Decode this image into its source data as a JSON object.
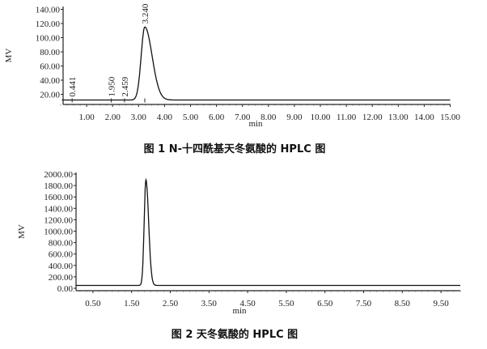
{
  "chart_data": [
    {
      "type": "line",
      "caption": "图 1   N-十四酰基天冬氨酸的 HPLC 图",
      "xlabel": "min",
      "ylabel": "MV",
      "xlim": [
        0,
        15
      ],
      "ylim": [
        7,
        145
      ],
      "xticks": [
        "1.00",
        "2.00",
        "3.00",
        "4.00",
        "5.00",
        "6.00",
        "7.00",
        "8.00",
        "9.00",
        "10.00",
        "11.00",
        "12.00",
        "13.00",
        "14.00",
        "15.00"
      ],
      "yticks": [
        "20.00",
        "40.00",
        "60.00",
        "80.00",
        "100.00",
        "120.00",
        "140.00"
      ],
      "baseline": 12,
      "peaks": [
        {
          "label": "0.441",
          "time": 0.441,
          "height": 0
        },
        {
          "label": "1.950",
          "time": 1.95,
          "height": 0
        },
        {
          "label": "2.459",
          "time": 2.459,
          "height": 0
        },
        {
          "label": "3.240",
          "time": 3.24,
          "height": 103
        }
      ],
      "grid": false,
      "color": "#111111"
    },
    {
      "type": "line",
      "caption": "图 2   天冬氨酸的 HPLC 图",
      "xlabel": "min",
      "ylabel": "MV",
      "xlim": [
        0,
        10
      ],
      "ylim": [
        -40,
        2000
      ],
      "xticks": [
        "0.50",
        "1.50",
        "2.50",
        "3.50",
        "4.50",
        "5.50",
        "6.50",
        "7.50",
        "8.50",
        "9.50"
      ],
      "yticks": [
        "0.00",
        "200.00",
        "400.00",
        "600.00",
        "800.00",
        "1000.00",
        "1200.00",
        "1400.00",
        "1600.00",
        "1800.00",
        "2000.00"
      ],
      "baseline": 50,
      "peaks": [
        {
          "label": "",
          "time": 1.87,
          "height": 1850
        }
      ],
      "grid": false,
      "color": "#111111"
    }
  ]
}
